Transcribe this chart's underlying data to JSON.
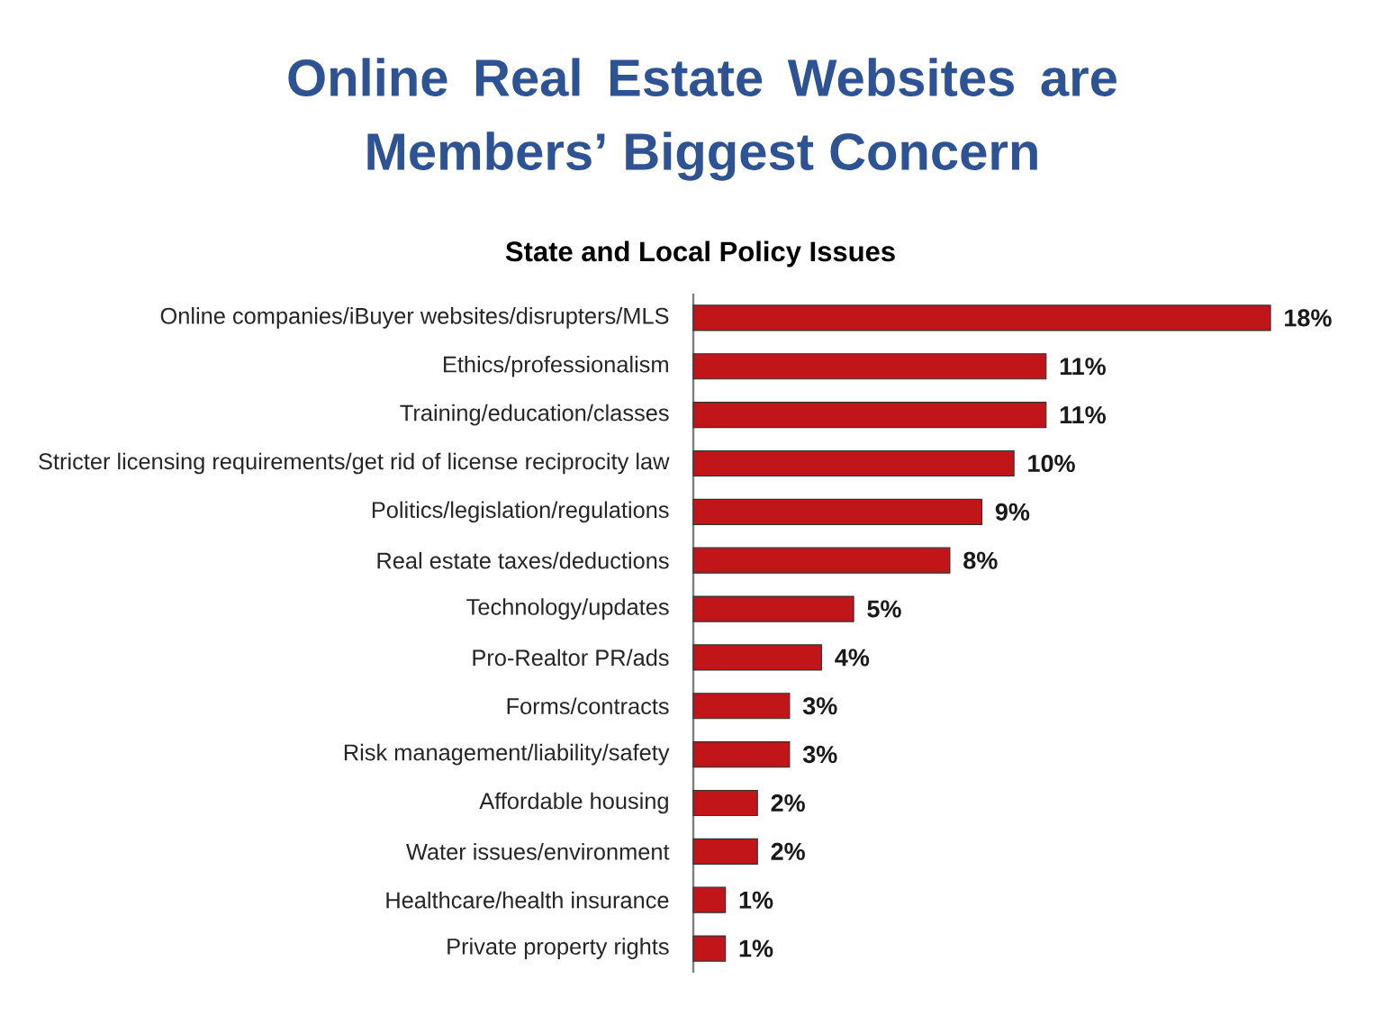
{
  "chart_data": {
    "type": "bar",
    "orientation": "horizontal",
    "title": "Online Real Estate Websites are Members’ Biggest Concern",
    "subtitle": "State and Local Policy Issues",
    "categories": [
      "Online companies/iBuyer websites/disrupters/MLS",
      "Ethics/professionalism",
      "Training/education/classes",
      "Stricter licensing requirements/get rid of license reciprocity law",
      "Politics/legislation/regulations",
      "Real estate taxes/deductions",
      "Technology/updates",
      "Pro-Realtor PR/ads",
      "Forms/contracts",
      "Risk management/liability/safety",
      "Affordable housing",
      "Water issues/environment",
      "Healthcare/health insurance",
      "Private property rights"
    ],
    "values": [
      18,
      11,
      11,
      10,
      9,
      8,
      5,
      4,
      3,
      3,
      2,
      2,
      1,
      1
    ],
    "value_labels": [
      "18%",
      "11%",
      "11%",
      "10%",
      "9%",
      "8%",
      "5%",
      "4%",
      "3%",
      "3%",
      "2%",
      "2%",
      "1%",
      "1%"
    ],
    "color": "#c0161a"
  }
}
